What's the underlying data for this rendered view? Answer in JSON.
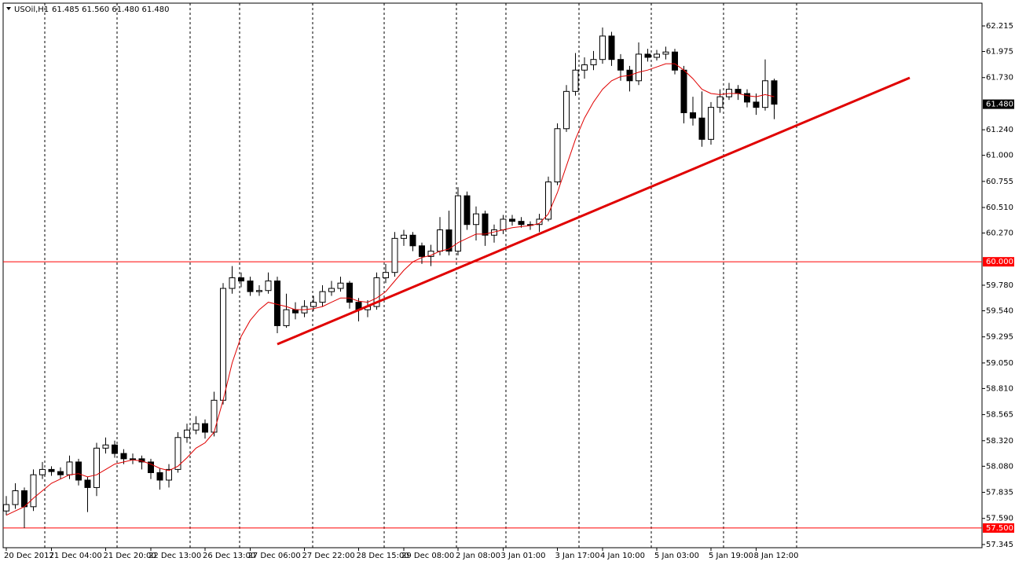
{
  "chart_data": {
    "type": "candlestick",
    "title": "USOil,H1",
    "subtitle": "61.485 61.560 61.480 61.480",
    "categories": [
      "20 Dec 2017",
      null,
      null,
      null,
      null,
      "21 Dec 04:00",
      null,
      null,
      null,
      null,
      null,
      "21 Dec 20:00",
      null,
      null,
      null,
      null,
      "22 Dec 13:00",
      null,
      null,
      null,
      null,
      null,
      "26 Dec 13:00",
      null,
      null,
      null,
      null,
      "27 Dec 06:00",
      null,
      null,
      null,
      null,
      null,
      "27 Dec 22:00",
      null,
      null,
      null,
      null,
      null,
      "28 Dec 15:00",
      null,
      null,
      null,
      null,
      "29 Dec 08:00",
      null,
      null,
      null,
      null,
      null,
      "2 Jan 08:00",
      null,
      null,
      null,
      null,
      "3 Jan 01:00",
      null,
      null,
      null,
      null,
      null,
      "3 Jan 17:00",
      null,
      null,
      null,
      null,
      "4 Jan 10:00",
      null,
      null,
      null,
      null,
      null,
      "5 Jan 03:00",
      null,
      null,
      null,
      null,
      null,
      "5 Jan 19:00",
      null,
      null,
      null,
      null,
      "8 Jan 12:00",
      null,
      null
    ],
    "open": [
      57.66,
      57.72,
      57.85,
      57.7,
      58.0,
      58.05,
      58.03,
      58.0,
      58.12,
      57.95,
      57.88,
      58.25,
      58.28,
      58.2,
      58.15,
      58.15,
      58.12,
      58.02,
      57.95,
      58.05,
      58.35,
      58.42,
      58.48,
      58.4,
      58.7,
      59.75,
      59.85,
      59.82,
      59.72,
      59.73,
      59.82,
      59.4,
      59.55,
      59.52,
      59.58,
      59.62,
      59.72,
      59.75,
      59.8,
      59.62,
      59.55,
      59.58,
      59.85,
      59.9,
      60.22,
      60.25,
      60.15,
      60.05,
      60.1,
      60.3,
      60.1,
      60.62,
      60.35,
      60.45,
      60.25,
      60.3,
      60.4,
      60.38,
      60.35,
      60.35,
      60.4,
      60.75,
      61.25,
      61.6,
      61.8,
      61.85,
      61.9,
      62.12,
      61.9,
      61.8,
      61.7,
      61.95,
      61.92,
      61.95,
      61.97,
      61.8,
      61.4,
      61.35,
      61.15,
      61.45,
      61.55,
      61.62,
      61.58,
      61.5,
      61.45,
      61.7
    ],
    "high": [
      57.8,
      57.92,
      57.88,
      58.05,
      58.12,
      58.08,
      58.07,
      58.18,
      58.15,
      57.98,
      58.3,
      58.35,
      58.32,
      58.24,
      58.2,
      58.18,
      58.15,
      58.06,
      58.1,
      58.4,
      58.48,
      58.55,
      58.52,
      58.78,
      59.8,
      59.96,
      59.9,
      59.86,
      59.78,
      59.9,
      59.86,
      59.7,
      59.62,
      59.64,
      59.68,
      59.78,
      59.82,
      59.86,
      59.82,
      59.66,
      59.64,
      59.9,
      59.98,
      60.28,
      60.3,
      60.28,
      60.18,
      60.16,
      60.42,
      60.48,
      60.7,
      60.66,
      60.52,
      60.48,
      60.35,
      60.44,
      60.44,
      60.42,
      60.38,
      60.45,
      60.8,
      61.3,
      61.66,
      61.96,
      61.92,
      61.98,
      62.2,
      62.16,
      61.95,
      61.84,
      62.06,
      62.0,
      61.99,
      62.02,
      62.0,
      61.84,
      61.55,
      61.6,
      61.5,
      61.62,
      61.68,
      61.66,
      61.62,
      61.58,
      61.9,
      61.72
    ],
    "low": [
      57.62,
      57.68,
      57.5,
      57.66,
      57.96,
      57.99,
      57.96,
      57.96,
      57.9,
      57.65,
      57.8,
      58.2,
      58.16,
      58.1,
      58.1,
      58.05,
      57.96,
      57.86,
      57.88,
      58.02,
      58.3,
      58.38,
      58.34,
      58.36,
      58.66,
      59.7,
      59.76,
      59.68,
      59.68,
      59.7,
      59.33,
      59.38,
      59.46,
      59.48,
      59.54,
      59.58,
      59.68,
      59.72,
      59.56,
      59.44,
      59.48,
      59.55,
      59.8,
      59.86,
      60.15,
      60.1,
      59.98,
      59.96,
      60.06,
      60.06,
      60.06,
      60.3,
      60.2,
      60.15,
      60.18,
      60.26,
      60.34,
      60.32,
      60.3,
      60.28,
      60.38,
      60.72,
      61.22,
      61.56,
      61.72,
      61.8,
      61.86,
      61.84,
      61.7,
      61.6,
      61.66,
      61.88,
      61.89,
      61.9,
      61.76,
      61.3,
      61.28,
      61.08,
      61.1,
      61.4,
      61.52,
      61.52,
      61.45,
      61.38,
      61.42,
      61.34
    ],
    "close": [
      57.72,
      57.85,
      57.7,
      58.0,
      58.05,
      58.03,
      58.0,
      58.12,
      57.95,
      57.88,
      58.25,
      58.28,
      58.2,
      58.15,
      58.15,
      58.12,
      58.02,
      57.95,
      58.05,
      58.35,
      58.42,
      58.48,
      58.4,
      58.7,
      59.75,
      59.85,
      59.82,
      59.72,
      59.73,
      59.82,
      59.4,
      59.55,
      59.52,
      59.58,
      59.62,
      59.72,
      59.75,
      59.8,
      59.62,
      59.55,
      59.58,
      59.85,
      59.9,
      60.22,
      60.25,
      60.15,
      60.05,
      60.1,
      60.3,
      60.1,
      60.62,
      60.35,
      60.45,
      60.25,
      60.3,
      60.4,
      60.38,
      60.35,
      60.35,
      60.4,
      60.75,
      61.25,
      61.6,
      61.8,
      61.85,
      61.9,
      62.12,
      61.9,
      61.8,
      61.7,
      61.95,
      61.92,
      61.95,
      61.97,
      61.8,
      61.4,
      61.35,
      61.15,
      61.45,
      61.55,
      61.62,
      61.58,
      61.5,
      61.45,
      61.7,
      61.48
    ],
    "up_color": "#ffffff",
    "down_color": "#000000",
    "ma": {
      "color": "#e00000",
      "values": [
        57.62,
        57.66,
        57.7,
        57.78,
        57.85,
        57.92,
        57.96,
        58.0,
        58.01,
        57.98,
        58.0,
        58.05,
        58.1,
        58.12,
        58.14,
        58.13,
        58.1,
        58.06,
        58.04,
        58.08,
        58.16,
        58.25,
        58.3,
        58.4,
        58.7,
        59.05,
        59.3,
        59.45,
        59.55,
        59.62,
        59.6,
        59.58,
        59.55,
        59.55,
        59.56,
        59.58,
        59.62,
        59.66,
        59.66,
        59.63,
        59.62,
        59.66,
        59.72,
        59.82,
        59.92,
        60.0,
        60.04,
        60.06,
        60.1,
        60.12,
        60.18,
        60.22,
        60.26,
        60.26,
        60.28,
        60.3,
        60.32,
        60.33,
        60.34,
        60.36,
        60.45,
        60.65,
        60.9,
        61.15,
        61.35,
        61.5,
        61.62,
        61.7,
        61.74,
        61.75,
        61.78,
        61.8,
        61.83,
        61.86,
        61.86,
        61.8,
        61.72,
        61.62,
        61.58,
        61.57,
        61.58,
        61.58,
        61.56,
        61.55,
        61.57,
        61.55
      ]
    },
    "ylim": [
      57.315,
      62.429
    ],
    "yticks": [
      62.215,
      61.975,
      {
        "value": 61.73,
        "label": "61.730"
      },
      {
        "value": 61.24,
        "label": "61.240"
      },
      {
        "value": 61,
        "label": "61.000"
      },
      60.755,
      {
        "value": 60.51,
        "label": "60.510"
      },
      {
        "value": 60.27,
        "label": "60.270"
      },
      {
        "value": 59.78,
        "label": "59.780"
      },
      {
        "value": 59.54,
        "label": "59.540"
      },
      59.295,
      {
        "value": 59.05,
        "label": "59.050"
      },
      {
        "value": 58.81,
        "label": "58.810"
      },
      58.565,
      {
        "value": 58.32,
        "label": "58.320"
      },
      {
        "value": 58.08,
        "label": "58.080"
      },
      57.835,
      {
        "value": 57.59,
        "label": "57.590"
      },
      57.345
    ],
    "levels": [
      {
        "value": 60,
        "label": "60.000"
      },
      {
        "value": 57.5,
        "label": "57.500"
      }
    ],
    "level_color": "#ff0000",
    "current_price": {
      "value": 61.48,
      "label": "61.480"
    },
    "trendline": {
      "color": "#e00000",
      "values": [
        59.226,
        61.728
      ]
    }
  }
}
